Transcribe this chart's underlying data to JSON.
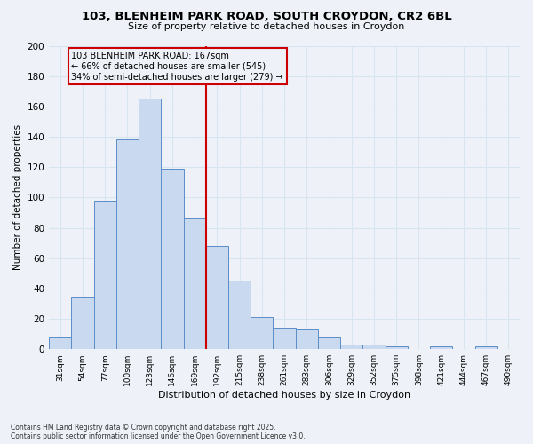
{
  "title": "103, BLENHEIM PARK ROAD, SOUTH CROYDON, CR2 6BL",
  "subtitle": "Size of property relative to detached houses in Croydon",
  "xlabel": "Distribution of detached houses by size in Croydon",
  "ylabel": "Number of detached properties",
  "footer_line1": "Contains HM Land Registry data © Crown copyright and database right 2025.",
  "footer_line2": "Contains public sector information licensed under the Open Government Licence v3.0.",
  "bin_labels": [
    "31sqm",
    "54sqm",
    "77sqm",
    "100sqm",
    "123sqm",
    "146sqm",
    "169sqm",
    "192sqm",
    "215sqm",
    "238sqm",
    "261sqm",
    "283sqm",
    "306sqm",
    "329sqm",
    "352sqm",
    "375sqm",
    "398sqm",
    "421sqm",
    "444sqm",
    "467sqm",
    "490sqm"
  ],
  "bar_values": [
    8,
    34,
    98,
    138,
    165,
    119,
    86,
    68,
    45,
    21,
    14,
    13,
    8,
    3,
    3,
    2,
    0,
    2,
    0,
    2,
    0
  ],
  "bar_color": "#c9d9ef",
  "bar_edge_color": "#5b8dc8",
  "vline_index": 6,
  "vline_color": "#cc0000",
  "annotation_line0": "103 BLENHEIM PARK ROAD: 167sqm",
  "annotation_line1": "← 66% of detached houses are smaller (545)",
  "annotation_line2": "34% of semi-detached houses are larger (279) →",
  "annotation_box_edge": "#cc0000",
  "background_color": "#eef2f8",
  "grid_color": "#d8e4f0",
  "ylim": [
    0,
    200
  ],
  "yticks": [
    0,
    20,
    40,
    60,
    80,
    100,
    120,
    140,
    160,
    180,
    200
  ]
}
